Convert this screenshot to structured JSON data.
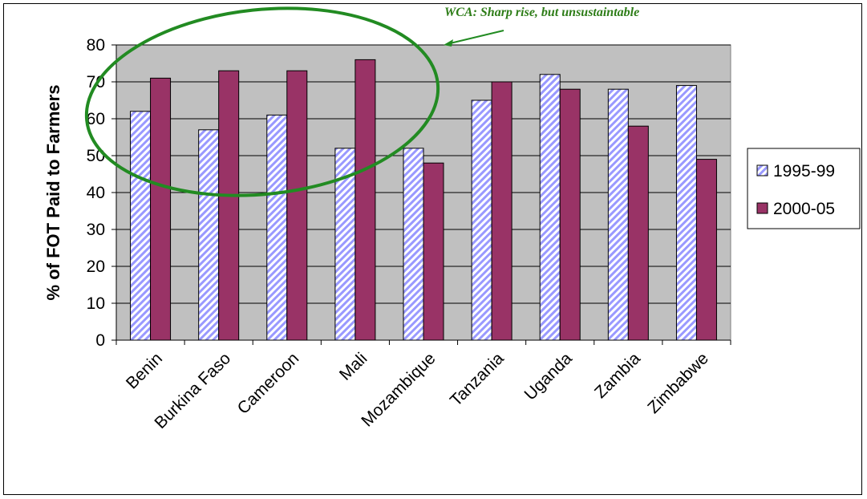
{
  "chart_data": {
    "type": "bar",
    "title": "",
    "xlabel": "",
    "ylabel": "% of FOT Paid to Farmers",
    "ylim": [
      0,
      80
    ],
    "yticks": [
      0,
      10,
      20,
      30,
      40,
      50,
      60,
      70,
      80
    ],
    "grid": "horizontal",
    "legend_position": "right",
    "categories": [
      "Benin",
      "Burkina Faso",
      "Cameroon",
      "Mali",
      "Mozambique",
      "Tanzania",
      "Uganda",
      "Zambia",
      "Zimbabwe"
    ],
    "series": [
      {
        "name": "1995-99",
        "values": [
          62,
          57,
          61,
          52,
          52,
          65,
          72,
          68,
          69
        ],
        "color": "#9999ff",
        "pattern": "diagonal-stripes"
      },
      {
        "name": "2000-05",
        "values": [
          71,
          73,
          73,
          76,
          48,
          70,
          68,
          58,
          49
        ],
        "color": "#993366",
        "pattern": "solid"
      }
    ],
    "annotation": {
      "text": "WCA: Sharp rise, but unsustaintable",
      "color": "#2e7d18",
      "ellipse_color": "#228b22"
    },
    "plot_background": "#c0c0c0"
  }
}
